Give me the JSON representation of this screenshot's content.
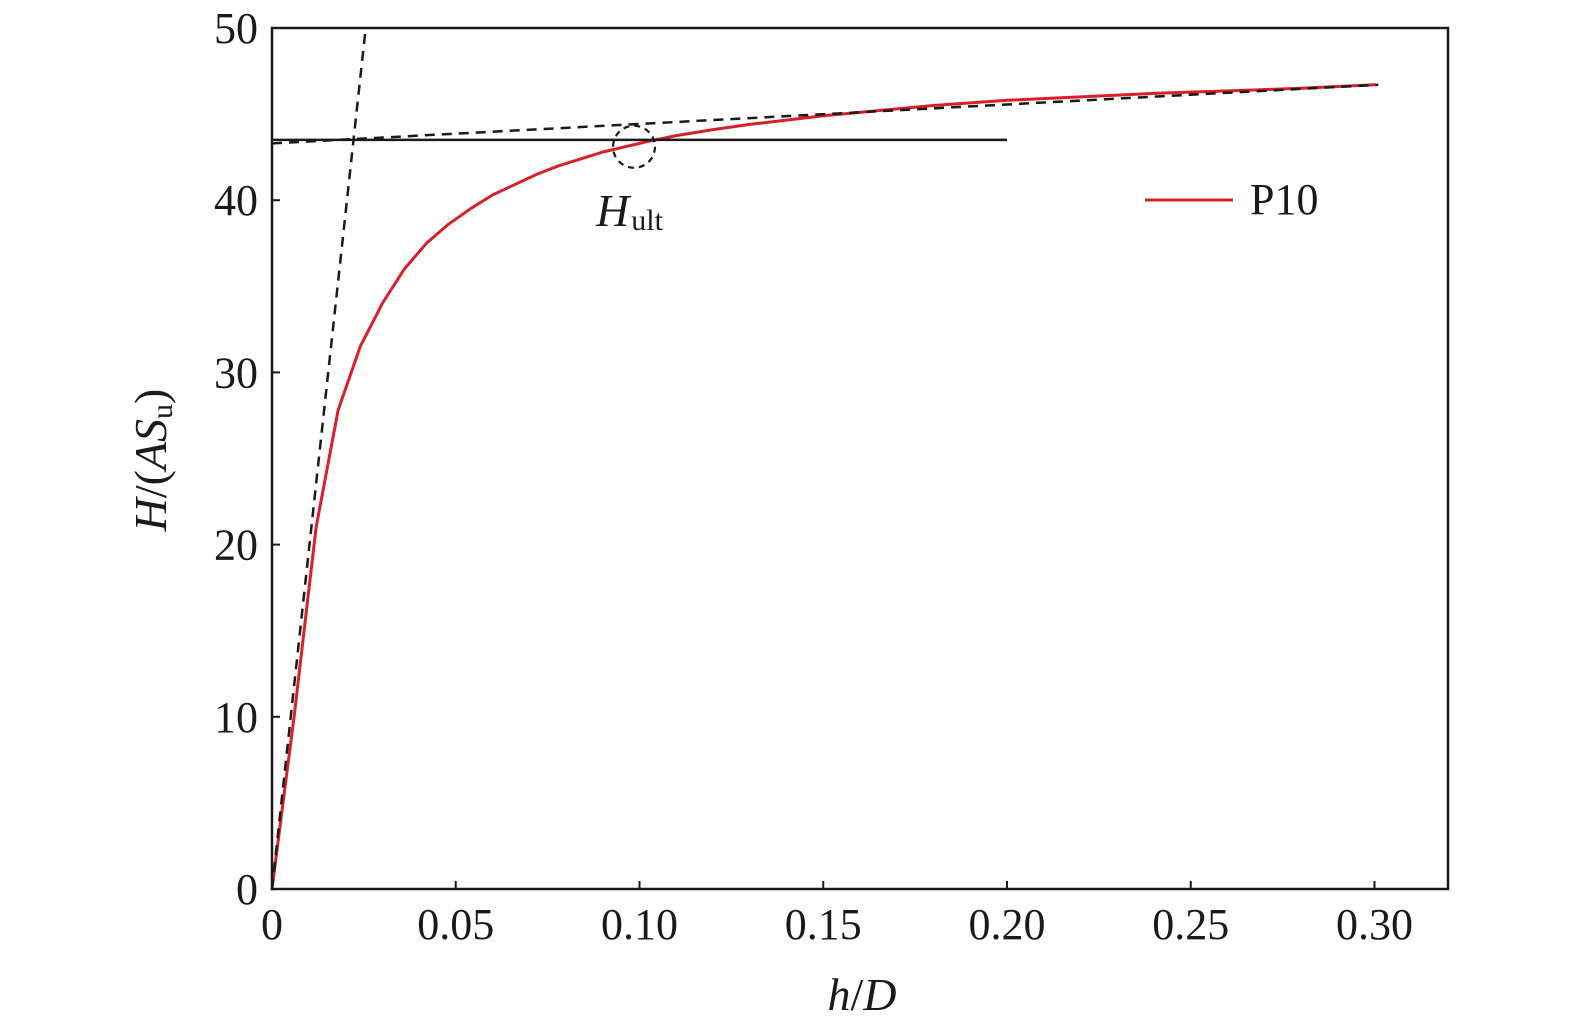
{
  "chart_data": {
    "type": "line",
    "xlabel": {
      "main": "h",
      "sep": "/",
      "den": "D"
    },
    "ylabel": {
      "main": "H",
      "open": "/(",
      "var": "AS",
      "sub": "u",
      "close": ")"
    },
    "xlim": [
      0,
      0.32
    ],
    "ylim": [
      0,
      50
    ],
    "xticks": [
      0,
      0.05,
      0.1,
      0.15,
      0.2,
      0.25,
      0.3
    ],
    "xtick_labels": [
      "0",
      "0.05",
      "0.10",
      "0.15",
      "0.20",
      "0.25",
      "0.30"
    ],
    "yticks": [
      0,
      10,
      20,
      30,
      40,
      50
    ],
    "ytick_labels": [
      "0",
      "10",
      "20",
      "30",
      "40",
      "50"
    ],
    "grid": false,
    "legend": {
      "position": "top-right"
    },
    "series": [
      {
        "name": "P10",
        "color": "#d9202a",
        "x": [
          0,
          0.003,
          0.006,
          0.009,
          0.012,
          0.018,
          0.024,
          0.03,
          0.036,
          0.042,
          0.048,
          0.054,
          0.06,
          0.066,
          0.072,
          0.078,
          0.084,
          0.09,
          0.096,
          0.102,
          0.11,
          0.12,
          0.13,
          0.14,
          0.15,
          0.16,
          0.17,
          0.18,
          0.19,
          0.2,
          0.22,
          0.24,
          0.26,
          0.28,
          0.3
        ],
        "y": [
          0,
          5,
          10,
          15.5,
          21,
          27.8,
          31.5,
          34.0,
          36.0,
          37.5,
          38.6,
          39.5,
          40.3,
          40.9,
          41.5,
          42.0,
          42.4,
          42.8,
          43.1,
          43.4,
          43.75,
          44.1,
          44.4,
          44.65,
          44.9,
          45.1,
          45.3,
          45.5,
          45.65,
          45.8,
          46.0,
          46.2,
          46.35,
          46.5,
          46.7
        ]
      }
    ],
    "reference_lines": [
      {
        "style": "dashed",
        "color": "#1a1a1a",
        "x": [
          0,
          0.0255
        ],
        "y": [
          0,
          50
        ]
      },
      {
        "style": "dashed",
        "color": "#1a1a1a",
        "x": [
          0,
          0.301
        ],
        "y": [
          43.3,
          46.7
        ]
      },
      {
        "style": "solid",
        "color": "#1a1a1a",
        "x": [
          0,
          0.2
        ],
        "y": [
          43.5,
          43.5
        ]
      }
    ],
    "annotations": [
      {
        "shape": "dashed-circle",
        "x": 0.0985,
        "y": 43.1
      },
      {
        "text": "H",
        "sub": "ult",
        "x": 0.0985,
        "y": 43.1
      }
    ]
  }
}
